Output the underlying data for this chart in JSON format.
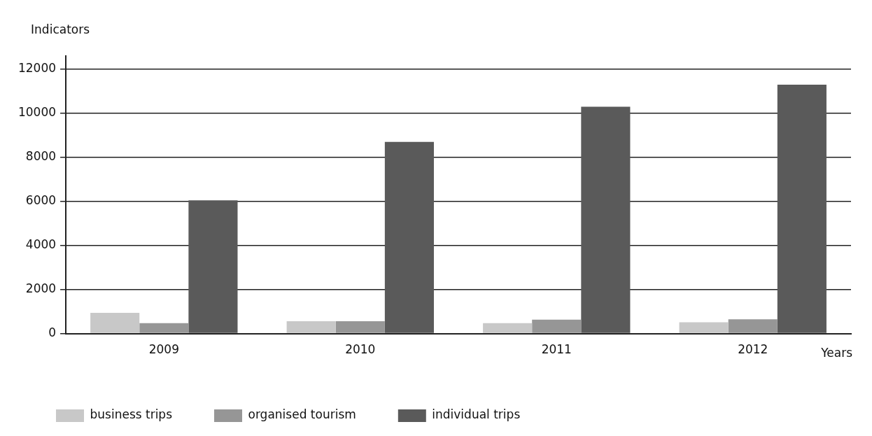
{
  "chart_data": {
    "type": "bar",
    "xlabel": "Years",
    "ylabel": "Indicators",
    "categories": [
      "2009",
      "2010",
      "2011",
      "2012"
    ],
    "series": [
      {
        "name": "business trips",
        "color": "#c8c8c8",
        "values": [
          940,
          560,
          470,
          510
        ]
      },
      {
        "name": "organised tourism",
        "color": "#969696",
        "values": [
          470,
          560,
          630,
          650
        ]
      },
      {
        "name": "individual trips",
        "color": "#5a5a5a",
        "values": [
          6050,
          8700,
          10300,
          11300
        ]
      }
    ],
    "ylim": [
      0,
      12600
    ],
    "yticks": [
      0,
      2000,
      4000,
      6000,
      8000,
      10000,
      12000
    ],
    "grid": "y",
    "legend": "bottom"
  }
}
